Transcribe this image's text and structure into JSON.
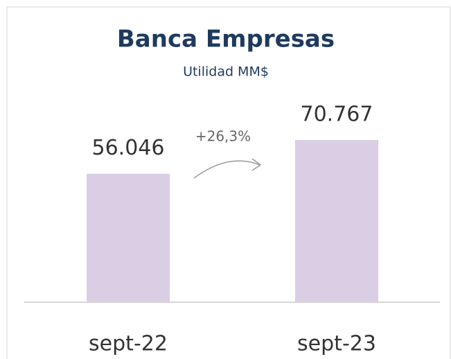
{
  "chart_data": {
    "type": "bar",
    "title": "Banca Empresas",
    "subtitle": "Utilidad MM$",
    "categories": [
      "sept-22",
      "sept-23"
    ],
    "values": [
      56046,
      70767
    ],
    "value_labels": [
      "56.046",
      "70.767"
    ],
    "color": "#d9cee3",
    "annotation": "+26,3%"
  }
}
